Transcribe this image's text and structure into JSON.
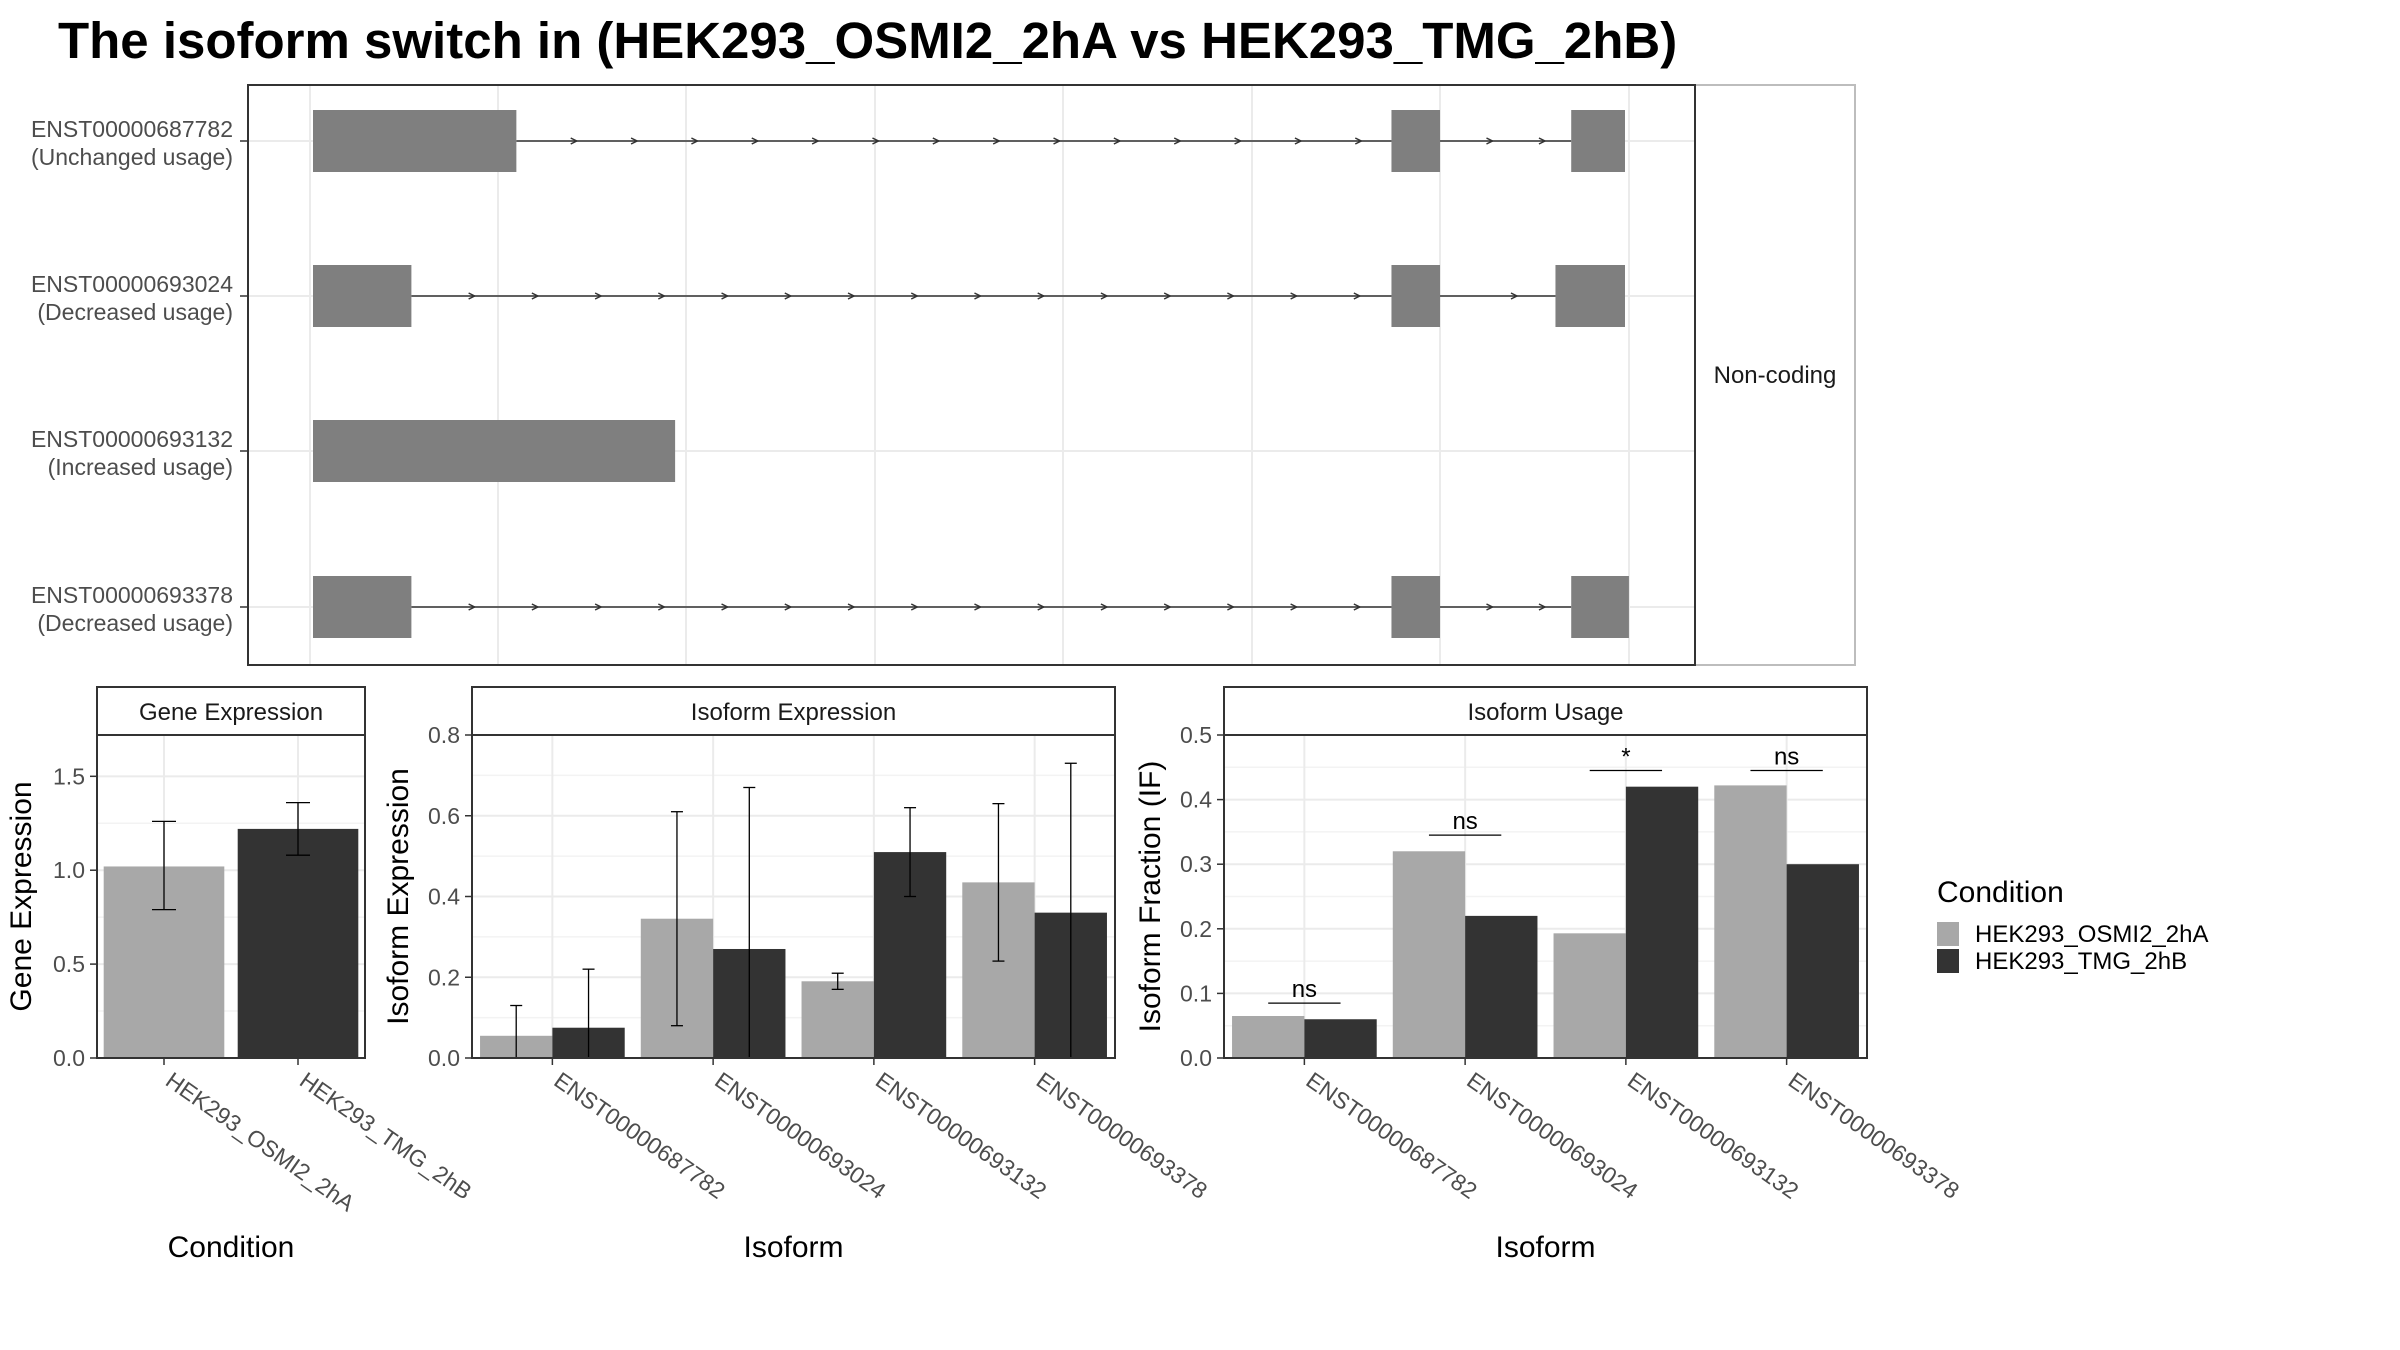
{
  "title": "The isoform switch in  (HEK293_OSMI2_2hA vs HEK293_TMG_2hB)",
  "colors": {
    "condA": "#a8a8a8",
    "condB": "#333333",
    "exon": "#7f7f7f",
    "grid": "#ebebeb",
    "panel_border": "#333333",
    "strip_fill": "#ffffff"
  },
  "chart_data": [
    {
      "type": "gene-structure",
      "facet_label": "Non-coding",
      "tracks": [
        {
          "id": "ENST00000687782",
          "usage": "(Unchanged usage)",
          "exons": [
            [
              0,
              0.155
            ],
            [
              0.822,
              0.859
            ],
            [
              0.959,
              1.0
            ]
          ]
        },
        {
          "id": "ENST00000693024",
          "usage": "(Decreased usage)",
          "exons": [
            [
              0,
              0.075
            ],
            [
              0.822,
              0.859
            ],
            [
              0.947,
              1.0
            ]
          ]
        },
        {
          "id": "ENST00000693132",
          "usage": "(Increased usage)",
          "exons": [
            [
              0,
              0.276
            ]
          ]
        },
        {
          "id": "ENST00000693378",
          "usage": "(Decreased usage)",
          "exons": [
            [
              0,
              0.075
            ],
            [
              0.822,
              0.859
            ],
            [
              0.959,
              1.003
            ]
          ]
        }
      ]
    },
    {
      "type": "bar",
      "strip": "Gene Expression",
      "xlabel": "Condition",
      "ylabel": "Gene Expression",
      "ylim": [
        0,
        1.72
      ],
      "yticks": [
        "0.0",
        "0.5",
        "1.0",
        "1.5"
      ],
      "categories": [
        "HEK293_OSMI2_2hA",
        "HEK293_TMG_2hB"
      ],
      "values": [
        1.02,
        1.22
      ],
      "err_low": [
        0.79,
        1.08
      ],
      "err_high": [
        1.26,
        1.36
      ]
    },
    {
      "type": "bar",
      "strip": "Isoform Expression",
      "xlabel": "Isoform",
      "ylabel": "Isoform Expression",
      "ylim": [
        0,
        0.8
      ],
      "yticks": [
        "0.0",
        "0.2",
        "0.4",
        "0.6",
        "0.8"
      ],
      "categories": [
        "ENST00000687782",
        "ENST00000693024",
        "ENST00000693132",
        "ENST00000693378"
      ],
      "series": [
        {
          "name": "HEK293_OSMI2_2hA",
          "values": [
            0.055,
            0.345,
            0.19,
            0.435
          ],
          "err_low": [
            0.0,
            0.08,
            0.17,
            0.24
          ],
          "err_high": [
            0.13,
            0.61,
            0.21,
            0.63
          ]
        },
        {
          "name": "HEK293_TMG_2hB",
          "values": [
            0.075,
            0.27,
            0.51,
            0.36
          ],
          "err_low": [
            0.0,
            0.0,
            0.4,
            0.0
          ],
          "err_high": [
            0.22,
            0.67,
            0.62,
            0.73
          ]
        }
      ]
    },
    {
      "type": "bar",
      "strip": "Isoform Usage",
      "xlabel": "Isoform",
      "ylabel": "Isoform Fraction (IF)",
      "ylim": [
        0,
        0.5
      ],
      "yticks": [
        "0.0",
        "0.1",
        "0.2",
        "0.3",
        "0.4",
        "0.5"
      ],
      "categories": [
        "ENST00000687782",
        "ENST00000693024",
        "ENST00000693132",
        "ENST00000693378"
      ],
      "series": [
        {
          "name": "HEK293_OSMI2_2hA",
          "values": [
            0.065,
            0.32,
            0.193,
            0.422
          ]
        },
        {
          "name": "HEK293_TMG_2hB",
          "values": [
            0.06,
            0.22,
            0.42,
            0.3
          ]
        }
      ],
      "significance": [
        "ns",
        "ns",
        "*",
        "ns"
      ],
      "sig_levels": [
        0.085,
        0.345,
        0.445,
        0.445
      ]
    }
  ],
  "legend": {
    "title": "Condition",
    "items": [
      {
        "label": "HEK293_OSMI2_2hA",
        "color": "#a8a8a8"
      },
      {
        "label": "HEK293_TMG_2hB",
        "color": "#333333"
      }
    ]
  }
}
